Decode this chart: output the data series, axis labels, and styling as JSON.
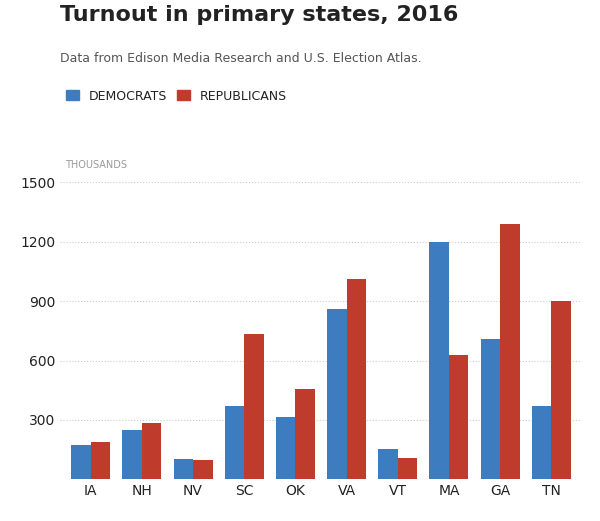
{
  "title": "Turnout in primary states, 2016",
  "subtitle": "Data from Edison Media Research and U.S. Election Atlas.",
  "ylabel": "THOUSANDS",
  "categories": [
    "IA",
    "NH",
    "NV",
    "SC",
    "OK",
    "VA",
    "VT",
    "MA",
    "GA",
    "TN"
  ],
  "democrats": [
    171,
    250,
    105,
    370,
    315,
    860,
    155,
    1200,
    710,
    370
  ],
  "republicans": [
    186,
    285,
    100,
    735,
    455,
    1010,
    110,
    630,
    1290,
    900
  ],
  "dem_color": "#3d7dbf",
  "rep_color": "#bf3b2b",
  "background_color": "#ffffff",
  "ylim": [
    0,
    1500
  ],
  "yticks": [
    0,
    300,
    600,
    900,
    1200,
    1500
  ],
  "ytick_labels": [
    "",
    "300",
    "600",
    "900",
    "1200",
    "1500"
  ],
  "title_fontsize": 16,
  "subtitle_fontsize": 9,
  "legend_fontsize": 9,
  "axis_label_fontsize": 7,
  "tick_fontsize": 10,
  "bar_width": 0.38,
  "grid_color": "#cccccc",
  "text_color": "#222222",
  "subtitle_color": "#555555",
  "ylabel_color": "#999999"
}
